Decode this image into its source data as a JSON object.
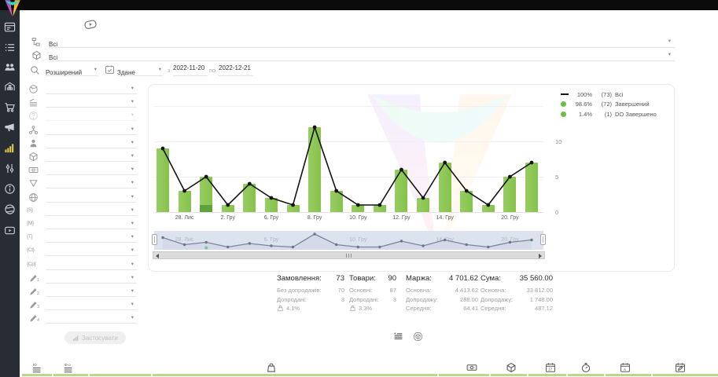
{
  "sidebar": {
    "items": [
      {
        "icon": "dashboard-icon"
      },
      {
        "icon": "orders-list-icon"
      },
      {
        "icon": "users-icon"
      },
      {
        "icon": "warehouse-icon"
      },
      {
        "icon": "cart-icon"
      },
      {
        "icon": "megaphone-icon"
      },
      {
        "icon": "analytics-icon",
        "active": true
      },
      {
        "icon": "sliders-icon"
      },
      {
        "icon": "info-icon"
      },
      {
        "icon": "globe-icon"
      },
      {
        "icon": "video-icon"
      }
    ]
  },
  "filters": {
    "source": {
      "icon": "hierarchy-icon",
      "value": "Всі"
    },
    "product": {
      "icon": "box-icon",
      "value": "Всі"
    },
    "mode": {
      "icon": "search-icon",
      "value": "Розширений"
    },
    "date_type": {
      "icon": "calendar-check-icon",
      "value": "Здане"
    },
    "from_label": "з",
    "date_from": "2022-11-20",
    "to_label": "по",
    "date_to": "2022-12-21",
    "apply_label": "Застосувати",
    "side": [
      {
        "icon": "sphere-icon",
        "value": ""
      },
      {
        "icon": "layers-icon",
        "value": ""
      },
      {
        "icon": "question-icon",
        "value": "",
        "disabled": true
      },
      {
        "icon": "nodes-icon",
        "value": ""
      },
      {
        "icon": "person-icon",
        "value": ""
      },
      {
        "icon": "box-icon",
        "value": ""
      },
      {
        "icon": "banknote-icon",
        "value": ""
      },
      {
        "icon": "funnel-icon",
        "value": ""
      },
      {
        "icon": "globe-grid-icon",
        "value": ""
      },
      {
        "glyph": "{S}",
        "value": ""
      },
      {
        "glyph": "{M}",
        "value": ""
      },
      {
        "glyph": "{T}",
        "value": ""
      },
      {
        "glyph": "{Ct}",
        "value": ""
      },
      {
        "glyph": "{Cp}",
        "value": ""
      },
      {
        "icon": "pencil-icon",
        "sub": "1",
        "value": ""
      },
      {
        "icon": "pencil-icon",
        "sub": "2",
        "value": ""
      },
      {
        "icon": "pencil-icon",
        "sub": "3",
        "value": ""
      },
      {
        "icon": "pencil-icon",
        "sub": "4",
        "value": ""
      }
    ]
  },
  "chart_data": {
    "type": "bar+line",
    "x_labels": [
      "",
      "28. Лис",
      "",
      "2. Гру",
      "",
      "6. Гру",
      "",
      "8. Гру",
      "",
      "10. Гру",
      "",
      "12. Гру",
      "",
      "14. Гру",
      "",
      "",
      "20. Гру",
      ""
    ],
    "yticks": [
      0,
      5,
      10
    ],
    "ylim": [
      0,
      15
    ],
    "series": [
      {
        "name": "Всі",
        "type": "line",
        "color": "#141414",
        "values": [
          9,
          3,
          5,
          1,
          4,
          2,
          1,
          12,
          3,
          1,
          1,
          6,
          2,
          7,
          3,
          1,
          5,
          7
        ]
      },
      {
        "name": "Завершений",
        "type": "bar",
        "color": "#8cc552",
        "values": [
          9,
          3,
          4,
          1,
          4,
          2,
          1,
          12,
          3,
          1,
          1,
          6,
          2,
          7,
          3,
          1,
          5,
          7
        ]
      },
      {
        "name": "DO Завершено",
        "type": "bar",
        "color": "#5ea23e",
        "values": [
          0,
          0,
          1,
          0,
          0,
          0,
          0,
          0,
          0,
          0,
          0,
          0,
          0,
          0,
          0,
          0,
          0,
          0
        ]
      }
    ],
    "legend": [
      {
        "marker": "line",
        "color": "#141414",
        "pct": "100%",
        "count": "(73)",
        "label": "Всі"
      },
      {
        "marker": "dot",
        "color": "#6abf44",
        "pct": "98.6%",
        "count": "(72)",
        "label": "Завершений"
      },
      {
        "marker": "dot",
        "color": "#6abf44",
        "pct": "1.4%",
        "count": "(1)",
        "label": "DO Завершено"
      }
    ],
    "navigator_labels": [
      {
        "i": 1,
        "t": "28. Лис"
      },
      {
        "i": 5,
        "t": "6. Гру"
      },
      {
        "i": 9,
        "t": "10. Гру"
      },
      {
        "i": 13,
        "t": "14. Гру"
      },
      {
        "i": 16,
        "t": "20. Гру"
      }
    ]
  },
  "stats": [
    {
      "title": "Замовлення:",
      "value": "73",
      "rows": [
        {
          "l": "Без допродажів:",
          "v": "70"
        },
        {
          "l": "Допродані:",
          "v": "3"
        }
      ],
      "pct": "4.1%",
      "pct_icon": "bag-icon"
    },
    {
      "title": "Товари:",
      "value": "90",
      "rows": [
        {
          "l": "Основні:",
          "v": "87"
        },
        {
          "l": "Допродані:",
          "v": "3"
        }
      ],
      "pct": "3.3%",
      "pct_icon": "bag-icon"
    },
    {
      "title": "Маржа:",
      "value": "4 701.62",
      "rows": [
        {
          "l": "Основна:",
          "v": "4 413.62"
        },
        {
          "l": "Допродажу:",
          "v": "288.00"
        },
        {
          "l": "Середня:",
          "v": "64.41"
        }
      ]
    },
    {
      "title": "Сума:",
      "value": "35 560.00",
      "rows": [
        {
          "l": "Основна:",
          "v": "33 812.00"
        },
        {
          "l": "Допродажу:",
          "v": "1 748.00"
        },
        {
          "l": "Середня:",
          "v": "487.12"
        }
      ]
    }
  ],
  "card_toggles": [
    {
      "icon": "stats-list-icon"
    },
    {
      "icon": "circle-box-icon"
    }
  ],
  "footer_columns": [
    {
      "icon": "id-list-icon"
    },
    {
      "icon": "id-o-icon"
    },
    {
      "icon": "bag-icon"
    },
    {
      "icon": "banknote-icon"
    },
    {
      "icon": "box-icon"
    },
    {
      "icon": "calendar-17-icon"
    },
    {
      "icon": "timer-icon"
    },
    {
      "icon": "calendar-a-icon"
    },
    {
      "icon": "calendar-edit-icon"
    }
  ]
}
